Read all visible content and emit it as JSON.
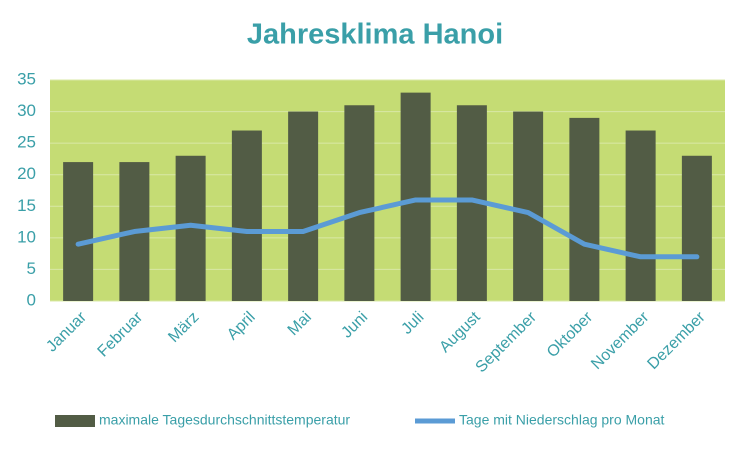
{
  "chart_data": {
    "type": "bar",
    "title": "Jahresklima Hanoi",
    "categories": [
      "Januar",
      "Februar",
      "März",
      "April",
      "Mai",
      "Juni",
      "Juli",
      "August",
      "September",
      "Oktober",
      "November",
      "Dezember"
    ],
    "series": [
      {
        "name": "maximale Tagesdurchschnittstemperatur",
        "type": "bar",
        "color": "#525c45",
        "values": [
          22,
          22,
          23,
          27,
          30,
          31,
          33,
          31,
          30,
          29,
          27,
          23
        ]
      },
      {
        "name": "Tage mit Niederschlag pro Monat",
        "type": "line",
        "color": "#5b9bd5",
        "values": [
          9,
          11,
          12,
          11,
          11,
          14,
          16,
          16,
          14,
          9,
          7,
          7
        ]
      }
    ],
    "ylim": [
      0,
      35
    ],
    "yticks": [
      0,
      5,
      10,
      15,
      20,
      25,
      30,
      35
    ],
    "grid": true,
    "plot_background": "#c5dc74",
    "legend": "bottom"
  }
}
